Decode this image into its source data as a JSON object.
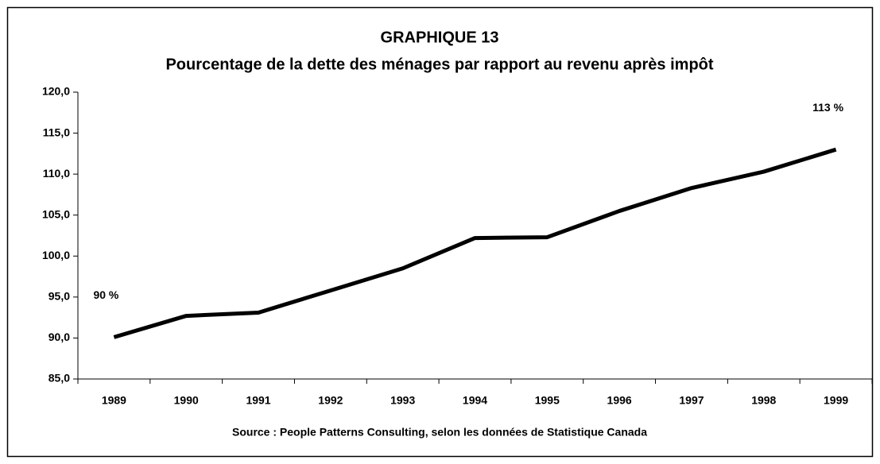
{
  "chart_data": {
    "type": "line",
    "title": "GRAPHIQUE 13",
    "subtitle": "Pourcentage de la dette des ménages par rapport au revenu après impôt",
    "source": "Source : People Patterns Consulting, selon les données de Statistique Canada",
    "categories": [
      "1989",
      "1990",
      "1991",
      "1992",
      "1993",
      "1994",
      "1995",
      "1996",
      "1997",
      "1998",
      "1999"
    ],
    "series": [
      {
        "color": "#000000",
        "values": [
          90.1,
          92.7,
          93.1,
          95.8,
          98.5,
          102.2,
          102.3,
          105.5,
          108.3,
          110.3,
          113
        ],
        "value_labels": [
          "90 %",
          null,
          null,
          null,
          null,
          null,
          null,
          null,
          null,
          null,
          "113 %"
        ]
      }
    ],
    "ylim": [
      85,
      120
    ],
    "yticks": [
      {
        "value": 85,
        "label": "85,0"
      },
      {
        "value": 90,
        "label": "90,0"
      },
      {
        "value": 95,
        "label": "95,0"
      },
      {
        "value": 100,
        "label": "100,0"
      },
      {
        "value": 105,
        "label": "105,0"
      },
      {
        "value": 110,
        "label": "110,0"
      },
      {
        "value": 115,
        "label": "115,0"
      },
      {
        "value": 120,
        "label": "120,0"
      }
    ],
    "grid": false
  }
}
